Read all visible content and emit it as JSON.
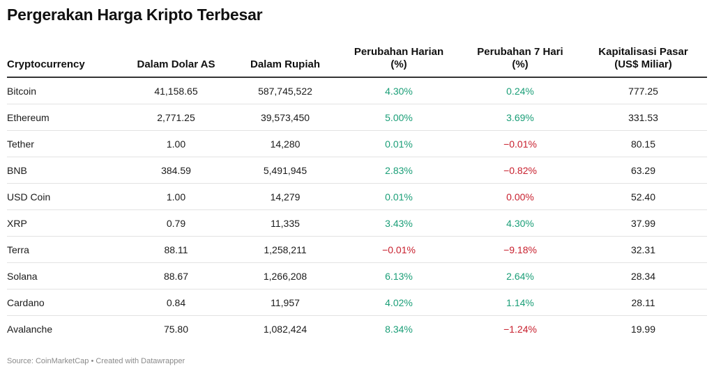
{
  "title": "Pergerakan Harga Kripto Terbesar",
  "colors": {
    "positive": "#1a9e77",
    "negative": "#c8202e"
  },
  "table": {
    "headers": [
      {
        "line1": "Cryptocurrency",
        "line2": ""
      },
      {
        "line1": "Dalam Dolar AS",
        "line2": ""
      },
      {
        "line1": "Dalam Rupiah",
        "line2": ""
      },
      {
        "line1": "Perubahan Harian",
        "line2": "(%)"
      },
      {
        "line1": "Perubahan 7 Hari",
        "line2": "(%)"
      },
      {
        "line1": "Kapitalisasi Pasar",
        "line2": "(US$ Miliar)"
      }
    ],
    "rows": [
      {
        "name": "Bitcoin",
        "usd": "41,158.65",
        "idr": "587,745,522",
        "daily": "4.30%",
        "weekly": "0.24%",
        "cap": "777.25",
        "daily_sign": "pos",
        "weekly_sign": "pos"
      },
      {
        "name": "Ethereum",
        "usd": "2,771.25",
        "idr": "39,573,450",
        "daily": "5.00%",
        "weekly": "3.69%",
        "cap": "331.53",
        "daily_sign": "pos",
        "weekly_sign": "pos"
      },
      {
        "name": "Tether",
        "usd": "1.00",
        "idr": "14,280",
        "daily": "0.01%",
        "weekly": "−0.01%",
        "cap": "80.15",
        "daily_sign": "pos",
        "weekly_sign": "neg"
      },
      {
        "name": "BNB",
        "usd": "384.59",
        "idr": "5,491,945",
        "daily": "2.83%",
        "weekly": "−0.82%",
        "cap": "63.29",
        "daily_sign": "pos",
        "weekly_sign": "neg"
      },
      {
        "name": "USD Coin",
        "usd": "1.00",
        "idr": "14,279",
        "daily": "0.01%",
        "weekly": "0.00%",
        "cap": "52.40",
        "daily_sign": "pos",
        "weekly_sign": "neg"
      },
      {
        "name": "XRP",
        "usd": "0.79",
        "idr": "11,335",
        "daily": "3.43%",
        "weekly": "4.30%",
        "cap": "37.99",
        "daily_sign": "pos",
        "weekly_sign": "pos"
      },
      {
        "name": "Terra",
        "usd": "88.11",
        "idr": "1,258,211",
        "daily": "−0.01%",
        "weekly": "−9.18%",
        "cap": "32.31",
        "daily_sign": "neg",
        "weekly_sign": "neg"
      },
      {
        "name": "Solana",
        "usd": "88.67",
        "idr": "1,266,208",
        "daily": "6.13%",
        "weekly": "2.64%",
        "cap": "28.34",
        "daily_sign": "pos",
        "weekly_sign": "pos"
      },
      {
        "name": "Cardano",
        "usd": "0.84",
        "idr": "11,957",
        "daily": "4.02%",
        "weekly": "1.14%",
        "cap": "28.11",
        "daily_sign": "pos",
        "weekly_sign": "pos"
      },
      {
        "name": "Avalanche",
        "usd": "75.80",
        "idr": "1,082,424",
        "daily": "8.34%",
        "weekly": "−1.24%",
        "cap": "19.99",
        "daily_sign": "pos",
        "weekly_sign": "neg"
      }
    ]
  },
  "footer": {
    "source": "Source: CoinMarketCap • Created with Datawrapper"
  }
}
